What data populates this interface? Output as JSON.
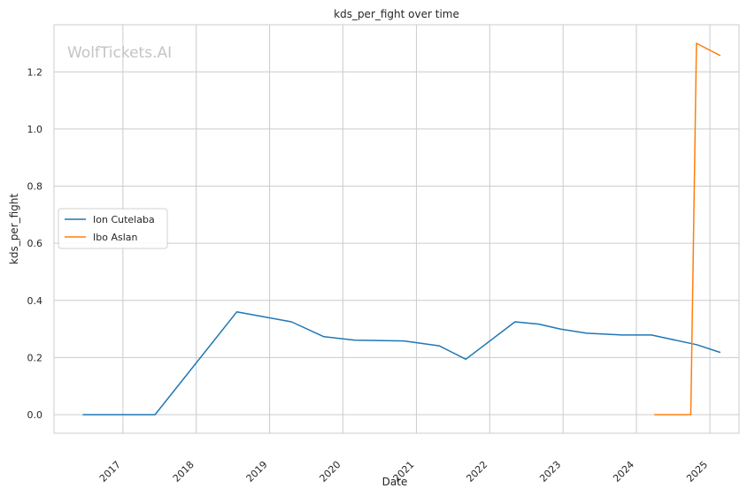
{
  "chart_data": {
    "type": "line",
    "title": "kds_per_fight over time",
    "xlabel": "Date",
    "ylabel": "kds_per_fight",
    "watermark": "WolfTickets.AI",
    "xlim": [
      "2016-01-24",
      "2025-05-26"
    ],
    "ylim": [
      -0.065,
      1.365
    ],
    "x_ticks": [
      "2017",
      "2018",
      "2019",
      "2020",
      "2021",
      "2022",
      "2023",
      "2024",
      "2025"
    ],
    "y_ticks": [
      "0.0",
      "0.2",
      "0.4",
      "0.6",
      "0.8",
      "1.0",
      "1.2"
    ],
    "grid": true,
    "legend_position": "center-left",
    "series": [
      {
        "name": "Ion Cutelaba",
        "color": "#1f77b4",
        "points": [
          [
            "2016-06-15",
            0.0
          ],
          [
            "2017-06-10",
            0.0
          ],
          [
            "2018-07-22",
            0.36
          ],
          [
            "2019-04-20",
            0.325
          ],
          [
            "2019-09-28",
            0.273
          ],
          [
            "2020-02-29",
            0.261
          ],
          [
            "2020-10-31",
            0.258
          ],
          [
            "2021-04-24",
            0.241
          ],
          [
            "2021-09-04",
            0.194
          ],
          [
            "2022-05-07",
            0.325
          ],
          [
            "2022-09-03",
            0.317
          ],
          [
            "2022-12-17",
            0.3
          ],
          [
            "2023-04-29",
            0.285
          ],
          [
            "2023-10-21",
            0.279
          ],
          [
            "2024-03-16",
            0.279
          ],
          [
            "2024-10-26",
            0.245
          ],
          [
            "2025-02-22",
            0.218
          ]
        ]
      },
      {
        "name": "Ibo Aslan",
        "color": "#ff7f0e",
        "points": [
          [
            "2024-03-30",
            0.0
          ],
          [
            "2024-09-28",
            0.0
          ],
          [
            "2024-10-26",
            1.3
          ],
          [
            "2025-02-22",
            1.257
          ]
        ]
      }
    ]
  }
}
